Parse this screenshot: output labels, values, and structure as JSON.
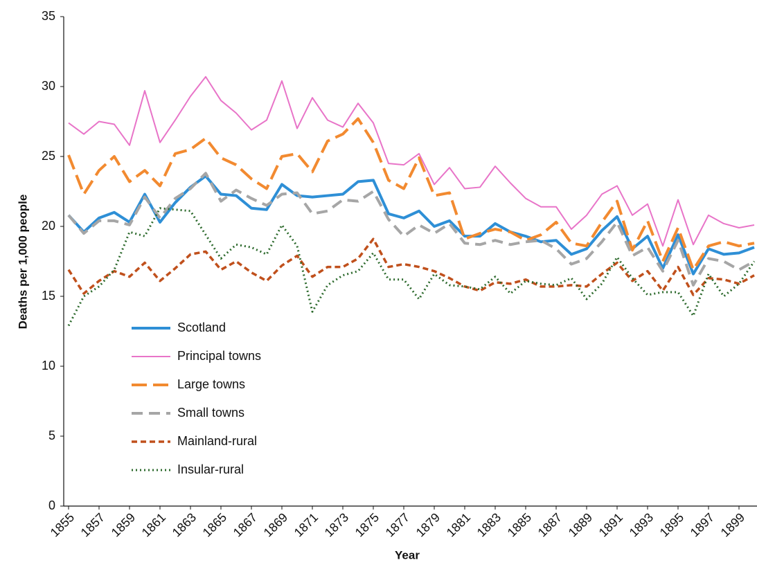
{
  "chart_data": {
    "type": "line",
    "x_label": "Year",
    "y_label": "Deaths per 1,000 people",
    "x": [
      1855,
      1856,
      1857,
      1858,
      1859,
      1860,
      1861,
      1862,
      1863,
      1864,
      1865,
      1866,
      1867,
      1868,
      1869,
      1870,
      1871,
      1872,
      1873,
      1874,
      1875,
      1876,
      1877,
      1878,
      1879,
      1880,
      1881,
      1882,
      1883,
      1884,
      1885,
      1886,
      1887,
      1888,
      1889,
      1890,
      1891,
      1892,
      1893,
      1894,
      1895,
      1896,
      1897,
      1898,
      1899,
      1900
    ],
    "xlim": [
      1855,
      1900
    ],
    "xticks": [
      1855,
      1857,
      1859,
      1861,
      1863,
      1865,
      1867,
      1869,
      1871,
      1873,
      1875,
      1877,
      1879,
      1881,
      1883,
      1885,
      1887,
      1889,
      1891,
      1893,
      1895,
      1897,
      1899
    ],
    "ylim": [
      0,
      35
    ],
    "yticks": [
      0,
      5,
      10,
      15,
      20,
      25,
      30,
      35
    ],
    "grid": false,
    "legend": "center left",
    "series": [
      {
        "name": "Scotland",
        "color": "#2e8fd6",
        "values": [
          20.8,
          19.6,
          20.6,
          21.0,
          20.3,
          22.3,
          20.3,
          21.7,
          22.8,
          23.6,
          22.3,
          22.2,
          21.3,
          21.2,
          23.0,
          22.2,
          22.1,
          22.2,
          22.3,
          23.2,
          23.3,
          20.9,
          20.6,
          21.1,
          20.0,
          20.4,
          19.3,
          19.3,
          20.2,
          19.6,
          19.3,
          18.9,
          19.0,
          18.0,
          18.4,
          19.7,
          20.7,
          18.4,
          19.3,
          17.0,
          19.4,
          16.6,
          18.4,
          18.0,
          18.1,
          18.5
        ]
      },
      {
        "name": "Principal towns",
        "color": "#e874c8",
        "values": [
          27.4,
          26.6,
          27.5,
          27.3,
          25.8,
          29.7,
          26.0,
          27.6,
          29.3,
          30.7,
          29.0,
          28.1,
          26.9,
          27.6,
          30.4,
          27.0,
          29.2,
          27.6,
          27.1,
          28.8,
          27.4,
          24.5,
          24.4,
          25.2,
          23.0,
          24.2,
          22.7,
          22.8,
          24.3,
          23.1,
          22.0,
          21.4,
          21.4,
          19.8,
          20.8,
          22.3,
          22.9,
          20.8,
          21.6,
          18.6,
          21.9,
          18.7,
          20.8,
          20.2,
          19.9,
          20.1
        ]
      },
      {
        "name": "Large towns",
        "color": "#f28a30",
        "values": [
          25.1,
          22.3,
          24.0,
          25.0,
          23.2,
          24.0,
          22.9,
          25.2,
          25.5,
          26.3,
          24.9,
          24.4,
          23.4,
          22.7,
          25.0,
          25.2,
          23.9,
          26.1,
          26.6,
          27.7,
          26.0,
          23.3,
          22.7,
          24.9,
          22.2,
          22.4,
          19.1,
          19.5,
          19.8,
          19.6,
          19.0,
          19.4,
          20.3,
          18.8,
          18.6,
          20.3,
          21.8,
          18.3,
          20.4,
          17.5,
          19.9,
          16.9,
          18.6,
          18.9,
          18.6,
          18.8
        ]
      },
      {
        "name": "Small towns",
        "color": "#a6a6a6",
        "values": [
          20.8,
          19.5,
          20.4,
          20.4,
          20.1,
          22.1,
          20.6,
          22.0,
          22.7,
          23.8,
          21.8,
          22.6,
          22.0,
          21.5,
          22.3,
          22.4,
          20.9,
          21.1,
          21.9,
          21.8,
          22.5,
          20.5,
          19.3,
          20.1,
          19.5,
          20.2,
          18.8,
          18.7,
          19.0,
          18.7,
          18.9,
          19.0,
          18.4,
          17.3,
          17.7,
          18.9,
          20.3,
          17.9,
          18.5,
          16.8,
          19.0,
          15.8,
          17.7,
          17.5,
          16.9,
          17.5
        ]
      },
      {
        "name": "Mainland-rural",
        "color": "#c0501c",
        "values": [
          16.9,
          15.2,
          16.1,
          16.8,
          16.4,
          17.4,
          16.1,
          17.0,
          18.0,
          18.2,
          16.9,
          17.5,
          16.7,
          16.1,
          17.2,
          17.9,
          16.4,
          17.1,
          17.1,
          17.7,
          19.1,
          17.1,
          17.3,
          17.1,
          16.8,
          16.3,
          15.7,
          15.4,
          16.0,
          15.9,
          16.2,
          15.7,
          15.7,
          15.8,
          15.7,
          16.6,
          17.4,
          16.1,
          16.8,
          15.4,
          17.1,
          15.1,
          16.3,
          16.2,
          15.9,
          16.5
        ]
      },
      {
        "name": "Insular-rural",
        "color": "#2d6a2d",
        "values": [
          12.9,
          15.0,
          15.7,
          16.9,
          19.6,
          19.3,
          21.3,
          21.2,
          21.1,
          19.4,
          17.7,
          18.7,
          18.5,
          18.0,
          20.1,
          18.6,
          13.9,
          15.8,
          16.5,
          16.8,
          18.1,
          16.2,
          16.2,
          14.8,
          16.6,
          15.8,
          15.7,
          15.5,
          16.4,
          15.2,
          16.1,
          15.9,
          15.8,
          16.3,
          14.8,
          15.9,
          17.8,
          16.3,
          15.1,
          15.3,
          15.3,
          13.6,
          16.6,
          15.0,
          15.9,
          17.5
        ]
      }
    ]
  }
}
